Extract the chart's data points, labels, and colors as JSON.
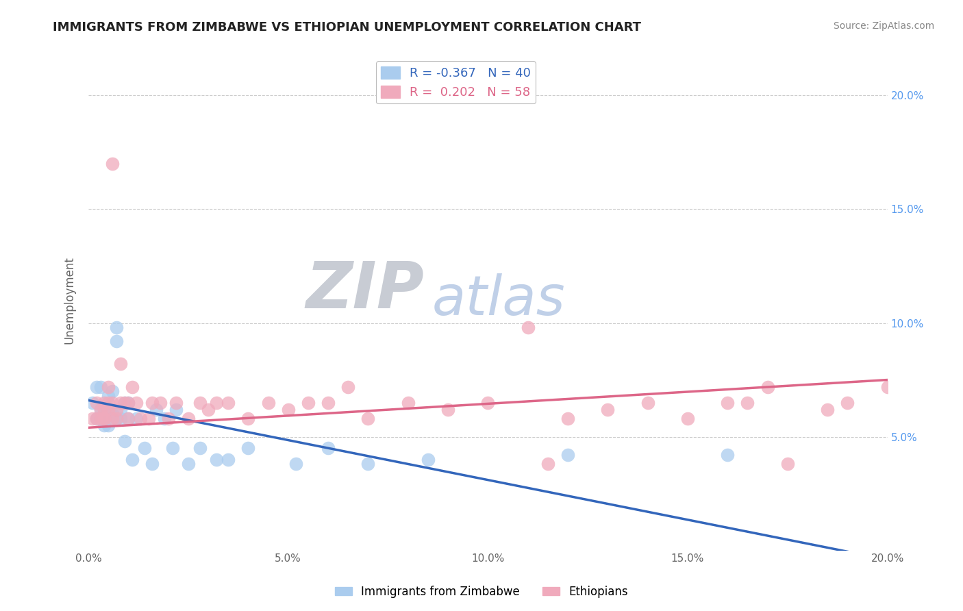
{
  "title": "IMMIGRANTS FROM ZIMBABWE VS ETHIOPIAN UNEMPLOYMENT CORRELATION CHART",
  "source": "Source: ZipAtlas.com",
  "ylabel": "Unemployment",
  "xlim": [
    0.0,
    0.2
  ],
  "ylim": [
    0.0,
    0.22
  ],
  "yticks": [
    0.05,
    0.1,
    0.15,
    0.2
  ],
  "xticks": [
    0.0,
    0.05,
    0.1,
    0.15,
    0.2
  ],
  "xtick_labels": [
    "0.0%",
    "5.0%",
    "10.0%",
    "15.0%",
    "20.0%"
  ],
  "right_ytick_labels": [
    "5.0%",
    "10.0%",
    "15.0%",
    "20.0%"
  ],
  "right_yticks": [
    0.05,
    0.1,
    0.15,
    0.2
  ],
  "zimbabwe_color": "#aaccee",
  "ethiopian_color": "#f0aabc",
  "zimbabwe_line_color": "#3366bb",
  "ethiopian_line_color": "#dd6688",
  "watermark_ZIP": "ZIP",
  "watermark_atlas": "atlas",
  "watermark_ZIP_color": "#c8ccd4",
  "watermark_atlas_color": "#c0d0e8",
  "background_color": "#ffffff",
  "zimbabwe_points": [
    [
      0.001,
      0.065
    ],
    [
      0.002,
      0.058
    ],
    [
      0.002,
      0.072
    ],
    [
      0.003,
      0.062
    ],
    [
      0.003,
      0.072
    ],
    [
      0.004,
      0.055
    ],
    [
      0.004,
      0.06
    ],
    [
      0.005,
      0.068
    ],
    [
      0.005,
      0.06
    ],
    [
      0.005,
      0.055
    ],
    [
      0.006,
      0.07
    ],
    [
      0.006,
      0.06
    ],
    [
      0.007,
      0.098
    ],
    [
      0.007,
      0.092
    ],
    [
      0.007,
      0.058
    ],
    [
      0.008,
      0.058
    ],
    [
      0.008,
      0.062
    ],
    [
      0.009,
      0.065
    ],
    [
      0.009,
      0.048
    ],
    [
      0.01,
      0.058
    ],
    [
      0.01,
      0.065
    ],
    [
      0.011,
      0.04
    ],
    [
      0.012,
      0.058
    ],
    [
      0.014,
      0.045
    ],
    [
      0.016,
      0.038
    ],
    [
      0.017,
      0.062
    ],
    [
      0.019,
      0.058
    ],
    [
      0.021,
      0.045
    ],
    [
      0.022,
      0.062
    ],
    [
      0.025,
      0.038
    ],
    [
      0.028,
      0.045
    ],
    [
      0.032,
      0.04
    ],
    [
      0.035,
      0.04
    ],
    [
      0.04,
      0.045
    ],
    [
      0.052,
      0.038
    ],
    [
      0.06,
      0.045
    ],
    [
      0.07,
      0.038
    ],
    [
      0.085,
      0.04
    ],
    [
      0.12,
      0.042
    ],
    [
      0.16,
      0.042
    ]
  ],
  "ethiopian_points": [
    [
      0.001,
      0.058
    ],
    [
      0.002,
      0.058
    ],
    [
      0.002,
      0.065
    ],
    [
      0.003,
      0.062
    ],
    [
      0.003,
      0.058
    ],
    [
      0.004,
      0.058
    ],
    [
      0.004,
      0.065
    ],
    [
      0.004,
      0.062
    ],
    [
      0.004,
      0.058
    ],
    [
      0.005,
      0.062
    ],
    [
      0.005,
      0.072
    ],
    [
      0.005,
      0.065
    ],
    [
      0.006,
      0.058
    ],
    [
      0.006,
      0.065
    ],
    [
      0.006,
      0.17
    ],
    [
      0.007,
      0.062
    ],
    [
      0.007,
      0.058
    ],
    [
      0.008,
      0.082
    ],
    [
      0.008,
      0.065
    ],
    [
      0.009,
      0.065
    ],
    [
      0.01,
      0.065
    ],
    [
      0.01,
      0.058
    ],
    [
      0.011,
      0.072
    ],
    [
      0.012,
      0.065
    ],
    [
      0.013,
      0.058
    ],
    [
      0.015,
      0.058
    ],
    [
      0.016,
      0.065
    ],
    [
      0.018,
      0.065
    ],
    [
      0.02,
      0.058
    ],
    [
      0.022,
      0.065
    ],
    [
      0.025,
      0.058
    ],
    [
      0.028,
      0.065
    ],
    [
      0.03,
      0.062
    ],
    [
      0.032,
      0.065
    ],
    [
      0.035,
      0.065
    ],
    [
      0.04,
      0.058
    ],
    [
      0.045,
      0.065
    ],
    [
      0.05,
      0.062
    ],
    [
      0.055,
      0.065
    ],
    [
      0.06,
      0.065
    ],
    [
      0.065,
      0.072
    ],
    [
      0.07,
      0.058
    ],
    [
      0.08,
      0.065
    ],
    [
      0.09,
      0.062
    ],
    [
      0.1,
      0.065
    ],
    [
      0.11,
      0.098
    ],
    [
      0.115,
      0.038
    ],
    [
      0.12,
      0.058
    ],
    [
      0.13,
      0.062
    ],
    [
      0.14,
      0.065
    ],
    [
      0.15,
      0.058
    ],
    [
      0.16,
      0.065
    ],
    [
      0.165,
      0.065
    ],
    [
      0.17,
      0.072
    ],
    [
      0.175,
      0.038
    ],
    [
      0.185,
      0.062
    ],
    [
      0.19,
      0.065
    ],
    [
      0.2,
      0.072
    ]
  ],
  "zim_line_x0": 0.0,
  "zim_line_y0": 0.066,
  "zim_line_x1": 0.2,
  "zim_line_y1": -0.004,
  "eth_line_x0": 0.0,
  "eth_line_y0": 0.054,
  "eth_line_x1": 0.2,
  "eth_line_y1": 0.075
}
